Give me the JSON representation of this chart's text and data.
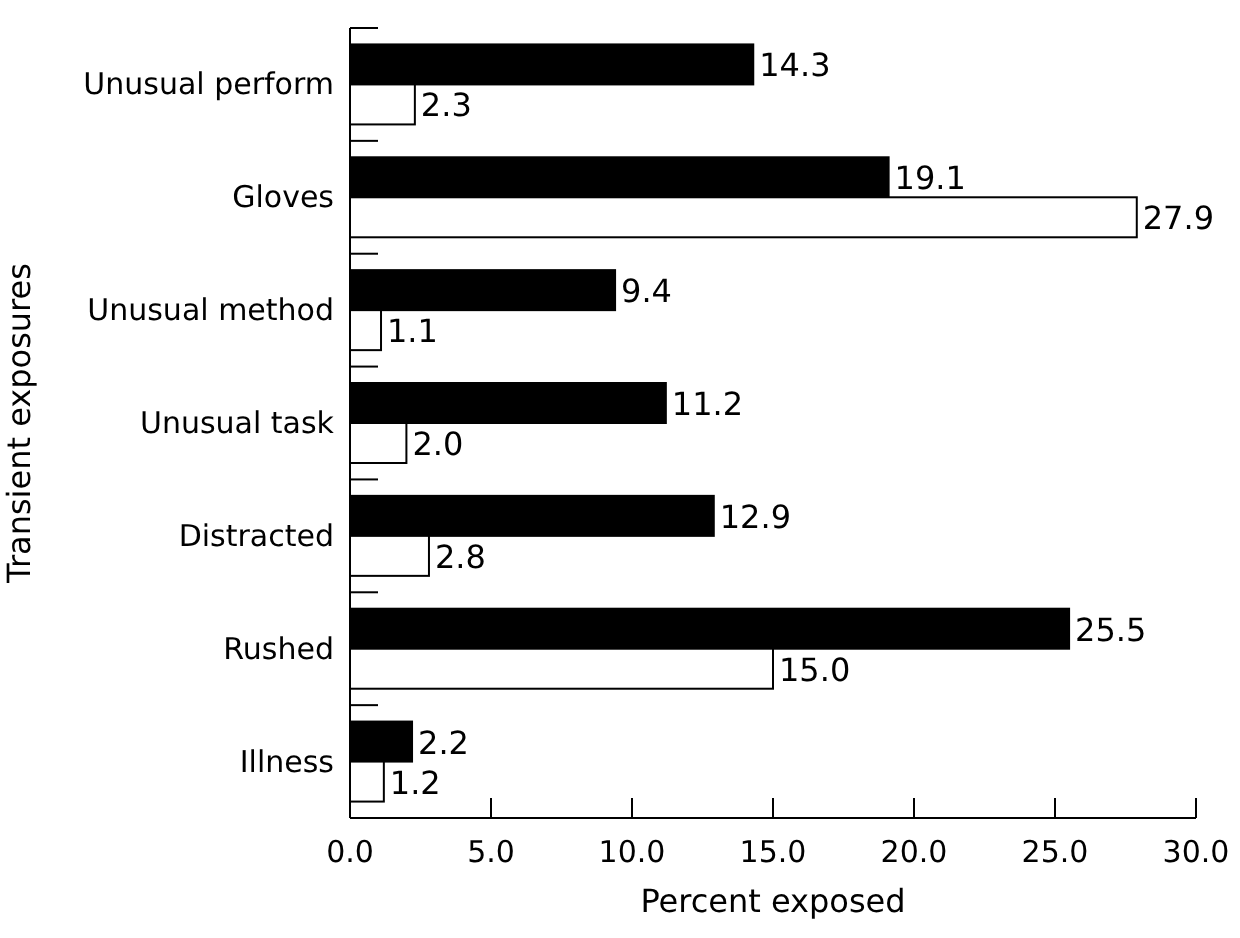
{
  "chart_data": {
    "type": "bar",
    "orientation": "horizontal",
    "xlabel": "Percent exposed",
    "ylabel": "Transient exposures",
    "categories": [
      "Unusual perform",
      "Gloves",
      "Unusual method",
      "Unusual task",
      "Distracted",
      "Rushed",
      "Illness"
    ],
    "series": [
      {
        "color": "#000000",
        "values": [
          14.3,
          19.1,
          9.4,
          11.2,
          12.9,
          25.5,
          2.2
        ],
        "value_labels": [
          "14.3",
          "19.1",
          "9.4",
          "11.2",
          "12.9",
          "25.5",
          "2.2"
        ]
      },
      {
        "color": "#ffffff",
        "values": [
          2.3,
          27.9,
          1.1,
          2.0,
          2.8,
          15.0,
          1.2
        ],
        "value_labels": [
          "2.3",
          "27.9",
          "1.1",
          "2.0",
          "2.8",
          "15.0",
          "1.2"
        ]
      }
    ],
    "xlim": [
      0,
      30
    ],
    "xticks": [
      {
        "value": 0,
        "label": "0.0"
      },
      {
        "value": 5,
        "label": "5.0"
      },
      {
        "value": 10,
        "label": "10.0"
      },
      {
        "value": 15,
        "label": "15.0"
      },
      {
        "value": 20,
        "label": "20.0"
      },
      {
        "value": 25,
        "label": "25.0"
      },
      {
        "value": 30,
        "label": "30.0"
      }
    ]
  }
}
